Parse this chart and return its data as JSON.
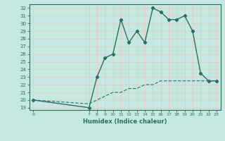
{
  "xlabel": "Humidex (Indice chaleur)",
  "ylabel": "",
  "xlim": [
    -0.5,
    23.5
  ],
  "ylim": [
    18.7,
    32.5
  ],
  "yticks": [
    19,
    20,
    21,
    22,
    23,
    24,
    25,
    26,
    27,
    28,
    29,
    30,
    31,
    32
  ],
  "xticks": [
    0,
    7,
    8,
    9,
    10,
    11,
    12,
    13,
    14,
    15,
    16,
    17,
    18,
    19,
    20,
    21,
    22,
    23
  ],
  "bg_color": "#c5e8e0",
  "grid_color": "#e8c8c8",
  "line_color": "#2d6e5e",
  "main_x": [
    0,
    7,
    8,
    9,
    10,
    11,
    12,
    13,
    14,
    15,
    16,
    17,
    18,
    19,
    20,
    21,
    22,
    23
  ],
  "main_y": [
    20.0,
    19.0,
    23.0,
    25.5,
    26.0,
    30.5,
    27.5,
    29.0,
    27.5,
    32.0,
    31.5,
    30.5,
    30.5,
    31.0,
    29.0,
    23.5,
    22.5,
    22.5
  ],
  "dash_x": [
    0,
    7,
    8,
    9,
    10,
    11,
    12,
    13,
    14,
    15,
    16,
    17,
    18,
    19,
    20,
    21,
    22,
    23
  ],
  "dash_y": [
    20.0,
    19.5,
    20.0,
    20.5,
    21.0,
    21.0,
    21.5,
    21.5,
    22.0,
    22.0,
    22.5,
    22.5,
    22.5,
    22.5,
    22.5,
    22.5,
    22.5,
    22.5
  ]
}
